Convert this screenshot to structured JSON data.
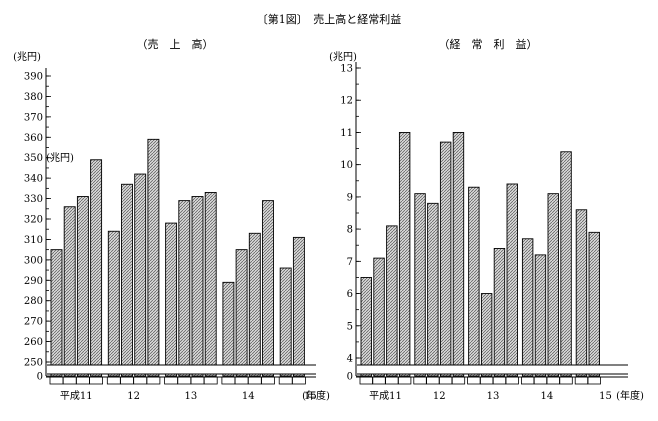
{
  "figure_title": "〔第1図〕　売上高と経常利益",
  "chart_data": [
    {
      "type": "bar",
      "title": "（売　上　高）",
      "ylabel": "(兆円)",
      "unit_label_inside": "(兆円)",
      "xlabel": "(年度)",
      "year_labels": [
        "平成11",
        "12",
        "13",
        "14",
        "15"
      ],
      "quarters_per_year": 4,
      "ylim": [
        245,
        390
      ],
      "axis_break": true,
      "yticks": [
        "0",
        "250",
        "260",
        "270",
        "280",
        "290",
        "300",
        "310",
        "320",
        "330",
        "340",
        "350",
        "360",
        "370",
        "380",
        "390"
      ],
      "values": [
        305,
        326,
        331,
        349,
        314,
        337,
        342,
        359,
        318,
        329,
        331,
        333,
        289,
        305,
        313,
        329,
        296,
        311
      ]
    },
    {
      "type": "bar",
      "title": "（経　常　利　益）",
      "ylabel": "(兆円)",
      "xlabel": "(年度)",
      "year_labels": [
        "平成11",
        "12",
        "13",
        "14",
        "15"
      ],
      "quarters_per_year": 4,
      "ylim": [
        3.6,
        13
      ],
      "axis_break": true,
      "yticks": [
        "0",
        "4",
        "5",
        "6",
        "7",
        "8",
        "9",
        "10",
        "11",
        "12",
        "13"
      ],
      "values": [
        6.5,
        7.1,
        8.1,
        11.0,
        9.1,
        8.8,
        10.7,
        11.0,
        9.3,
        6.0,
        7.4,
        9.4,
        7.7,
        7.2,
        9.1,
        10.4,
        8.6,
        7.9
      ]
    }
  ]
}
